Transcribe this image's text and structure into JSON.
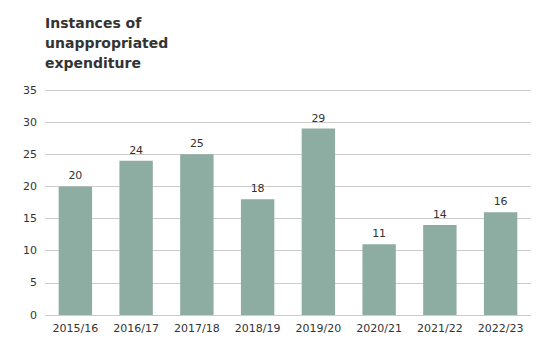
{
  "chart_data": {
    "type": "bar",
    "title": "Instances of\nunappropriated\nexpenditure",
    "categories": [
      "2015/16",
      "2016/17",
      "2017/18",
      "2018/19",
      "2019/20",
      "2020/21",
      "2021/22",
      "2022/23"
    ],
    "values": [
      20,
      24,
      25,
      18,
      29,
      11,
      14,
      16
    ],
    "color": "#8eada2",
    "ylim": [
      0,
      35
    ],
    "yticks": [
      0,
      5,
      10,
      15,
      20,
      25,
      30,
      35
    ],
    "grid": true,
    "data_labels": true
  }
}
